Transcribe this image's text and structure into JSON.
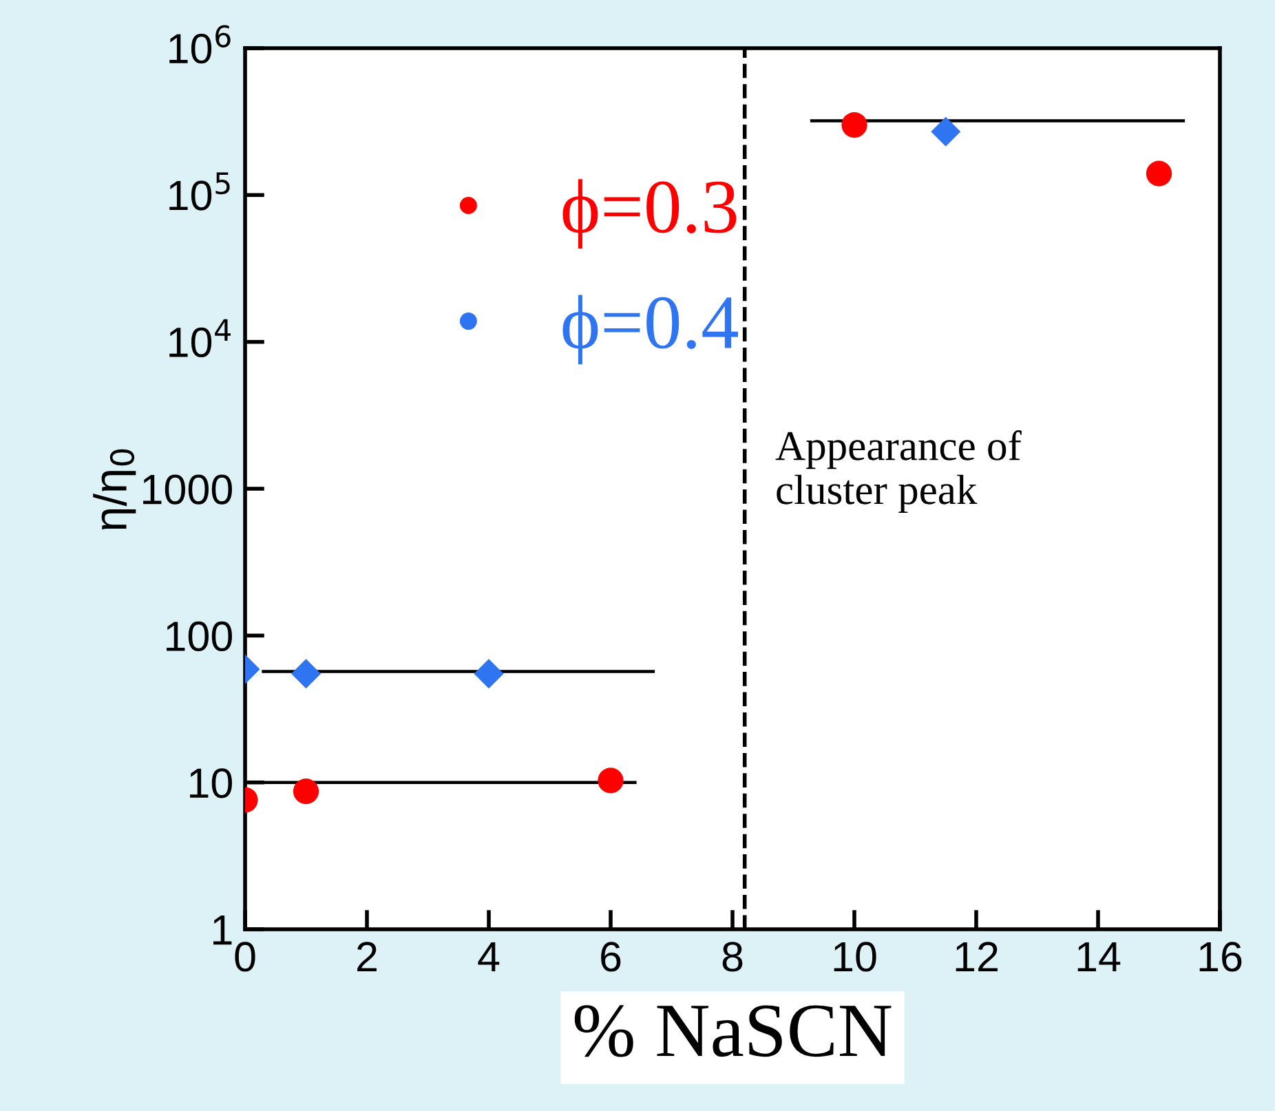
{
  "chart_data": {
    "type": "scatter",
    "xlabel": "% NaSCN",
    "ylabel": "η/η$_{0}$",
    "log": "y",
    "xlim": [
      0,
      16
    ],
    "ylim": [
      1,
      1000000
    ],
    "xticks": [
      0,
      2,
      4,
      6,
      8,
      10,
      12,
      14,
      16
    ],
    "yticks": [
      1,
      10,
      100,
      1000,
      {
        "value": 10000,
        "label": "10$^{4}$"
      },
      {
        "value": 100000,
        "label": "10$^{5}$"
      },
      {
        "value": 1000000,
        "label": "10$^{6}$"
      }
    ],
    "grid": false,
    "legend": "top left",
    "series": [
      {
        "name": "ϕ=0.3",
        "color": "#ff0000",
        "marker": "circle",
        "x": [
          0,
          1,
          6,
          10,
          15
        ],
        "values": [
          7.6,
          8.7,
          10.3,
          300000,
          140000
        ]
      },
      {
        "name": "ϕ=0.4",
        "color": "#2f74f0",
        "marker": "diamond",
        "x": [
          0,
          1,
          4,
          11.5
        ],
        "values": [
          59,
          55,
          55,
          270000
        ]
      },
      {
        "type": "line",
        "color": "#000000",
        "marker": "none",
        "line_style": "solid",
        "x": [
          0,
          6.4
        ],
        "values": [
          10,
          10
        ]
      },
      {
        "type": "line",
        "color": "#000000",
        "marker": "none",
        "line_style": "solid",
        "x": [
          0.3,
          6.7
        ],
        "values": [
          57,
          57
        ]
      },
      {
        "type": "line",
        "color": "#000000",
        "marker": "none",
        "line_style": "solid",
        "x": [
          9.3,
          15.4
        ],
        "values": [
          320000,
          320000
        ]
      }
    ],
    "ref_lines": [
      {
        "axis": "x",
        "value": 8.2,
        "label": "Appearance of\ncluster peak",
        "color": "#000000",
        "line_style": "dashed"
      }
    ]
  }
}
